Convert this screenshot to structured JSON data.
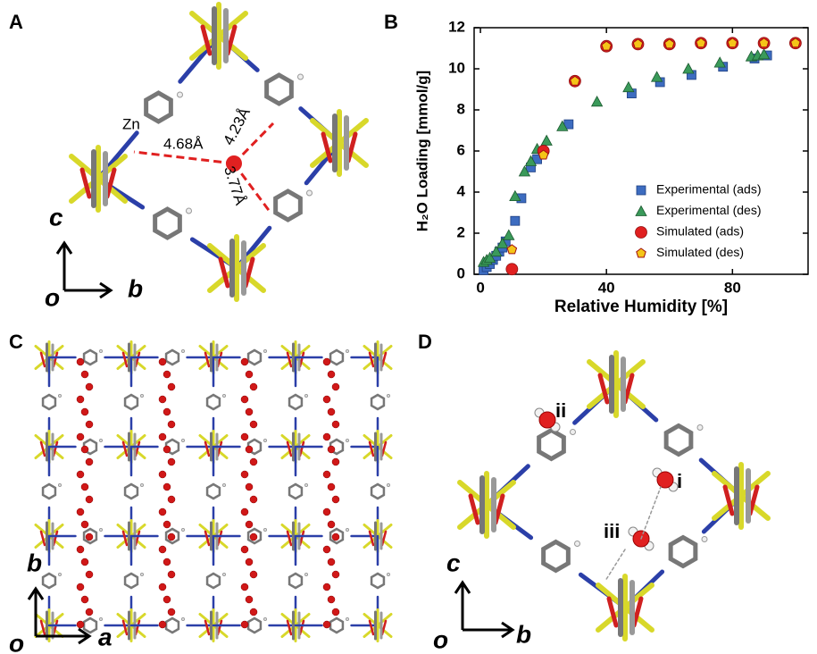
{
  "panels": {
    "A": {
      "letter": "A",
      "atom": "Zn",
      "distances": [
        "4.68Å",
        "4.23Å",
        "3.77Å"
      ],
      "axes": {
        "up": "c",
        "origin": "o",
        "right": "b"
      }
    },
    "C": {
      "letter": "C",
      "axes": {
        "up": "b",
        "origin": "o",
        "right": "a"
      }
    },
    "D": {
      "letter": "D",
      "sites": [
        "ii",
        "i",
        "iii"
      ],
      "axes": {
        "up": "c",
        "origin": "o",
        "right": "b"
      }
    }
  },
  "chart_data": {
    "type": "scatter",
    "panel_label": "B",
    "xlabel": "Relative Humidity [%]",
    "ylabel": "H₂O Loading [mmol/g]",
    "xlim": [
      -2,
      104
    ],
    "ylim": [
      0,
      12
    ],
    "xticks": [
      0,
      40,
      80
    ],
    "yticks": [
      0,
      2,
      4,
      6,
      8,
      10,
      12
    ],
    "legend": "lower right",
    "series": [
      {
        "name": "Experimental (ads)",
        "color": "#3d6cc0",
        "marker": "square",
        "x": [
          1,
          2,
          3,
          4,
          5,
          6,
          7,
          8,
          11,
          13,
          16,
          18,
          28,
          48,
          57,
          67,
          77,
          87,
          91
        ],
        "values": [
          0.2,
          0.35,
          0.5,
          0.7,
          0.9,
          1.1,
          1.3,
          1.6,
          2.6,
          3.7,
          5.2,
          5.6,
          7.3,
          8.8,
          9.35,
          9.7,
          10.1,
          10.5,
          10.65
        ]
      },
      {
        "name": "Experimental (des)",
        "color": "#3a9a5a",
        "marker": "triangle",
        "x": [
          1,
          2,
          3,
          5,
          7,
          9,
          11,
          14,
          16,
          18,
          21,
          26,
          37,
          47,
          56,
          66,
          76,
          86,
          88,
          90
        ],
        "values": [
          0.6,
          0.7,
          0.8,
          1.1,
          1.5,
          1.9,
          3.8,
          5.0,
          5.5,
          6.1,
          6.5,
          7.2,
          8.4,
          9.1,
          9.6,
          10.0,
          10.3,
          10.6,
          10.65,
          10.7
        ]
      },
      {
        "name": "Simulated (ads)",
        "color": "#e02020",
        "marker": "circle",
        "x": [
          10,
          20,
          30,
          40,
          50,
          60,
          70,
          80,
          90,
          100
        ],
        "values": [
          0.25,
          6.0,
          9.4,
          11.1,
          11.2,
          11.2,
          11.25,
          11.25,
          11.25,
          11.25
        ]
      },
      {
        "name": "Simulated (des)",
        "color": "#f5c518",
        "marker": "pentagon",
        "x": [
          10,
          20,
          30,
          40,
          50,
          60,
          70,
          80,
          90,
          100
        ],
        "values": [
          1.2,
          5.8,
          9.4,
          11.1,
          11.2,
          11.2,
          11.25,
          11.25,
          11.25,
          11.25
        ]
      }
    ]
  }
}
